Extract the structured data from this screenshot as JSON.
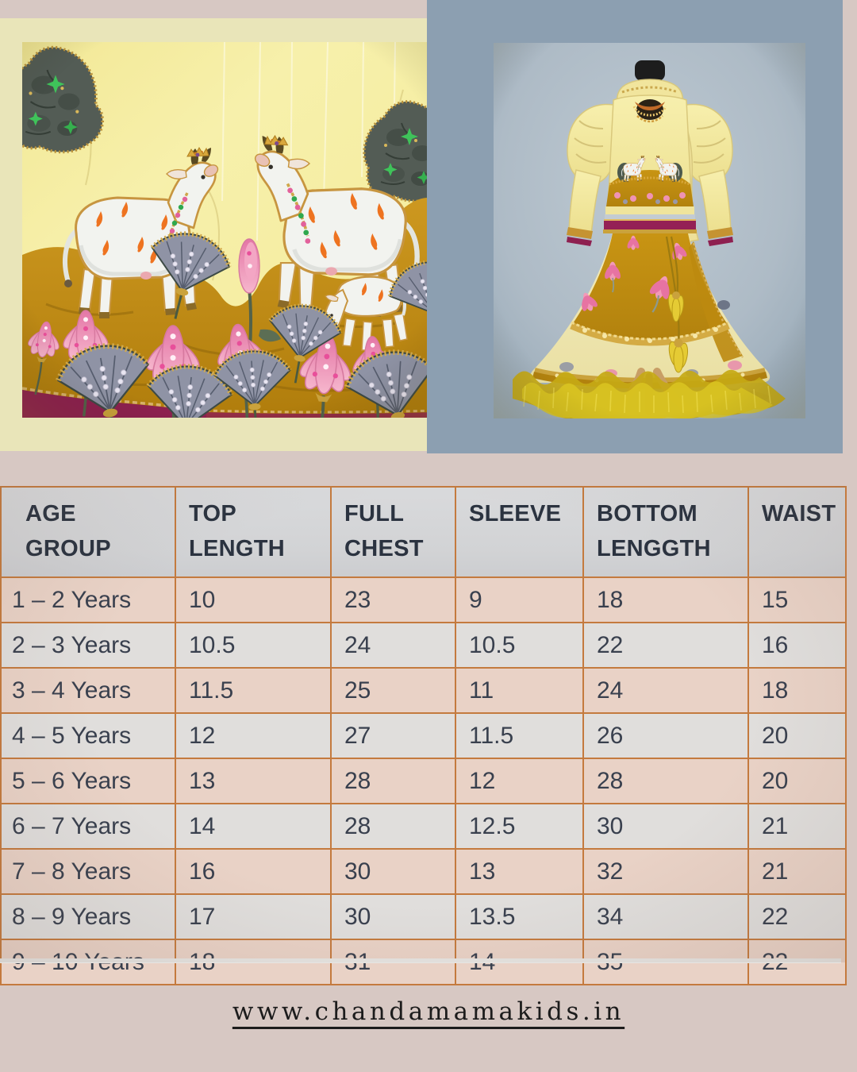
{
  "page": {
    "background": "#d7c8c3",
    "description": "Product graphic for a kids yellow cow-motif lehenga set with size chart"
  },
  "hero": {
    "left_photo": {
      "alt": "Close-up of pale yellow lehenga fabric embroidered with white cows, orange flame spots, pink lotus flowers, sequined grey fans and a maroon border"
    },
    "right_photo": {
      "alt": "Pale yellow and mustard cow-motif lehenga choli with puffed sleeves, dupatta, gold lace, tassels and yellow net frill, displayed on a wooden mannequin stand"
    }
  },
  "size_chart": {
    "columns": [
      {
        "label": "AGE GROUP",
        "lines": [
          "AGE",
          "GROUP"
        ]
      },
      {
        "label": "TOP LENGTH",
        "lines": [
          "TOP",
          "LENGTH"
        ]
      },
      {
        "label": "FULL CHEST",
        "lines": [
          "FULL",
          "CHEST"
        ]
      },
      {
        "label": "SLEEVE",
        "lines": [
          "SLEEVE"
        ]
      },
      {
        "label": "BOTTOM LENGGTH",
        "lines": [
          "BOTTOM",
          "LENGGTH"
        ]
      },
      {
        "label": "WAIST",
        "lines": [
          "WAIST"
        ]
      }
    ],
    "rows": [
      [
        "1 – 2  Years",
        "10",
        "23",
        "9",
        "18",
        "15"
      ],
      [
        "2 – 3 Years",
        "10.5",
        "24",
        "10.5",
        "22",
        "16"
      ],
      [
        "3 – 4 Years",
        "11.5",
        "25",
        "11",
        "24",
        "18"
      ],
      [
        "4 – 5 Years",
        "12",
        "27",
        "11.5",
        "26",
        "20"
      ],
      [
        "5 – 6 Years",
        "13",
        "28",
        "12",
        "28",
        "20"
      ],
      [
        "6 – 7 Years",
        "14",
        "28",
        "12.5",
        "30",
        "21"
      ],
      [
        "7 – 8 Years",
        "16",
        "30",
        "13",
        "32",
        "21"
      ],
      [
        "8 – 9 Years",
        "17",
        "30",
        "13.5",
        "34",
        "22"
      ],
      [
        "9 – 10 Years",
        "18",
        "31",
        "14",
        "35",
        "22"
      ]
    ]
  },
  "footer": {
    "website": "www.chandamamakids.in"
  },
  "palette": {
    "page_bg": "#d7c8c3",
    "left_panel_yellow": "#e9e5b9",
    "right_panel_blue": "#8c9fb1",
    "fabric_yellow": "#f6efa7",
    "mustard": "#c08a14",
    "maroon": "#8e2050",
    "gold": "#cda23e",
    "tulle_yellow": "#cdb118",
    "table_border": "#c47a3e",
    "row_pink": "#e9d2c6",
    "row_grey": "#e0dedc",
    "text_dark": "#39404e"
  }
}
